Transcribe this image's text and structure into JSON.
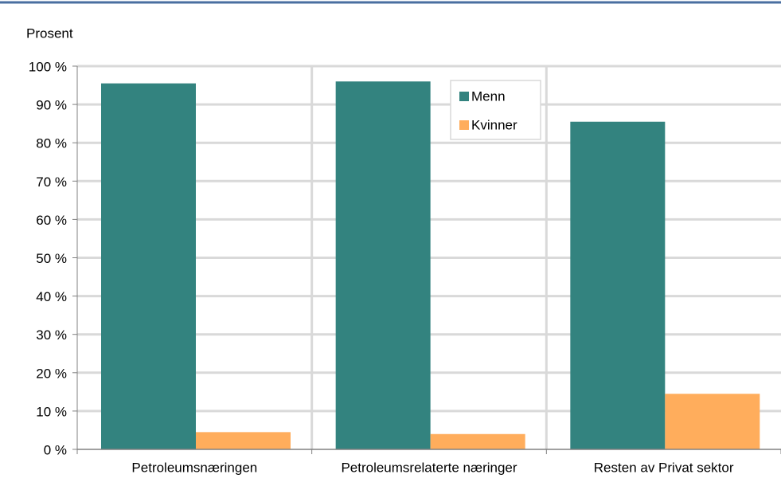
{
  "chart_data": {
    "type": "bar",
    "y_axis_label": "Prosent",
    "categories": [
      "Petroleumsnæringen",
      "Petroleumsrelaterte næringer",
      "Resten av Privat sektor"
    ],
    "series": [
      {
        "name": "Menn",
        "color": "#33837f",
        "values": [
          95.5,
          96,
          85.5
        ]
      },
      {
        "name": "Kvinner",
        "color": "#ffad5c",
        "values": [
          4.5,
          4,
          14.5
        ]
      }
    ],
    "ylim": [
      0,
      100
    ],
    "yticks": [
      {
        "value": 0,
        "label": "0 %"
      },
      {
        "value": 10,
        "label": "10 %"
      },
      {
        "value": 20,
        "label": "20 %"
      },
      {
        "value": 30,
        "label": "30 %"
      },
      {
        "value": 40,
        "label": "40 %"
      },
      {
        "value": 50,
        "label": "50 %"
      },
      {
        "value": 60,
        "label": "60 %"
      },
      {
        "value": 70,
        "label": "70 %"
      },
      {
        "value": 80,
        "label": "80 %"
      },
      {
        "value": 90,
        "label": "90 %"
      },
      {
        "value": 100,
        "label": "100 %"
      }
    ],
    "grid": true,
    "legend": "top-center"
  }
}
